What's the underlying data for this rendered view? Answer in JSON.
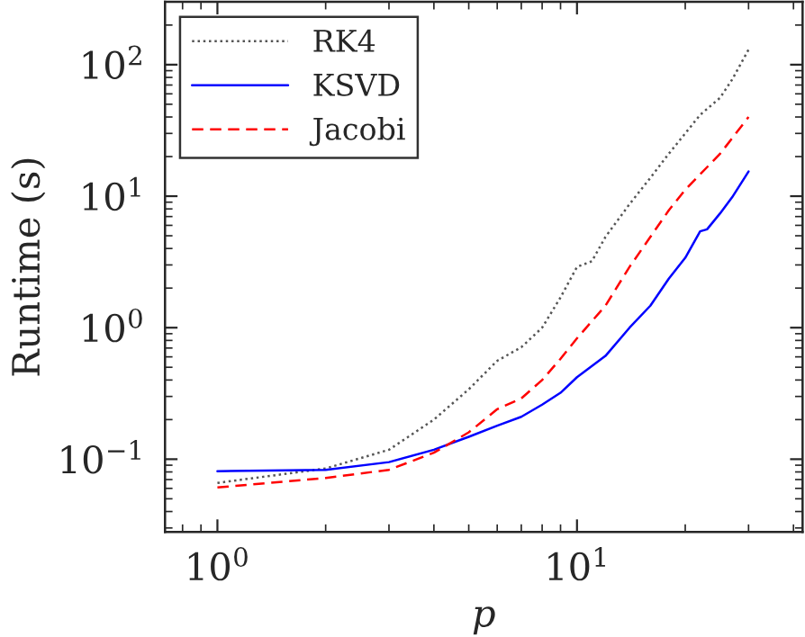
{
  "chart_data": {
    "type": "line",
    "xlabel": "p",
    "ylabel": "Runtime (s)",
    "log": "xy",
    "grid": false,
    "legend": "top left",
    "marker": "none",
    "xlim": [
      0.715,
      42.4
    ],
    "ylim": [
      0.028,
      300
    ],
    "xticks": [
      {
        "value": 1,
        "label": "10$^{0}$"
      },
      {
        "value": 10,
        "label": "10$^{1}$"
      }
    ],
    "yticks": [
      {
        "value": 0.1,
        "label": "10$^{−1}$"
      },
      {
        "value": 1,
        "label": "10$^{0}$"
      },
      {
        "value": 10,
        "label": "10$^{1}$"
      },
      {
        "value": 100,
        "label": "10$^{2}$"
      }
    ],
    "series": [
      {
        "name": "RK4",
        "color": "#555555",
        "line_style": "dotted",
        "x": [
          1,
          2,
          3,
          4,
          5,
          6,
          7,
          8,
          9,
          10,
          11,
          12,
          14,
          16,
          18,
          20,
          22,
          25,
          27,
          30
        ],
        "values": [
          0.066,
          0.085,
          0.118,
          0.2,
          0.34,
          0.56,
          0.71,
          1.0,
          1.7,
          2.9,
          3.2,
          4.9,
          8.7,
          13.8,
          21,
          30,
          41.5,
          56,
          77,
          130
        ]
      },
      {
        "name": "KSVD",
        "color": "#0000ff",
        "line_style": "solid",
        "x": [
          1,
          2,
          3,
          4,
          5,
          6,
          7,
          8,
          9,
          10,
          12,
          14,
          16,
          18,
          20,
          22,
          23,
          25,
          27,
          30
        ],
        "values": [
          0.081,
          0.083,
          0.095,
          0.118,
          0.148,
          0.18,
          0.21,
          0.26,
          0.32,
          0.42,
          0.61,
          1.0,
          1.47,
          2.36,
          3.4,
          5.4,
          5.6,
          7.4,
          9.8,
          15.4
        ]
      },
      {
        "name": "Jacobi",
        "color": "#ff0000",
        "line_style": "dashed",
        "x": [
          1,
          2,
          3,
          4,
          5,
          6,
          7,
          8,
          9,
          10,
          12,
          14,
          16,
          18,
          20,
          25,
          30
        ],
        "values": [
          0.061,
          0.072,
          0.083,
          0.112,
          0.16,
          0.24,
          0.29,
          0.4,
          0.58,
          0.83,
          1.47,
          2.9,
          4.9,
          7.8,
          11.2,
          21,
          40
        ]
      }
    ]
  }
}
